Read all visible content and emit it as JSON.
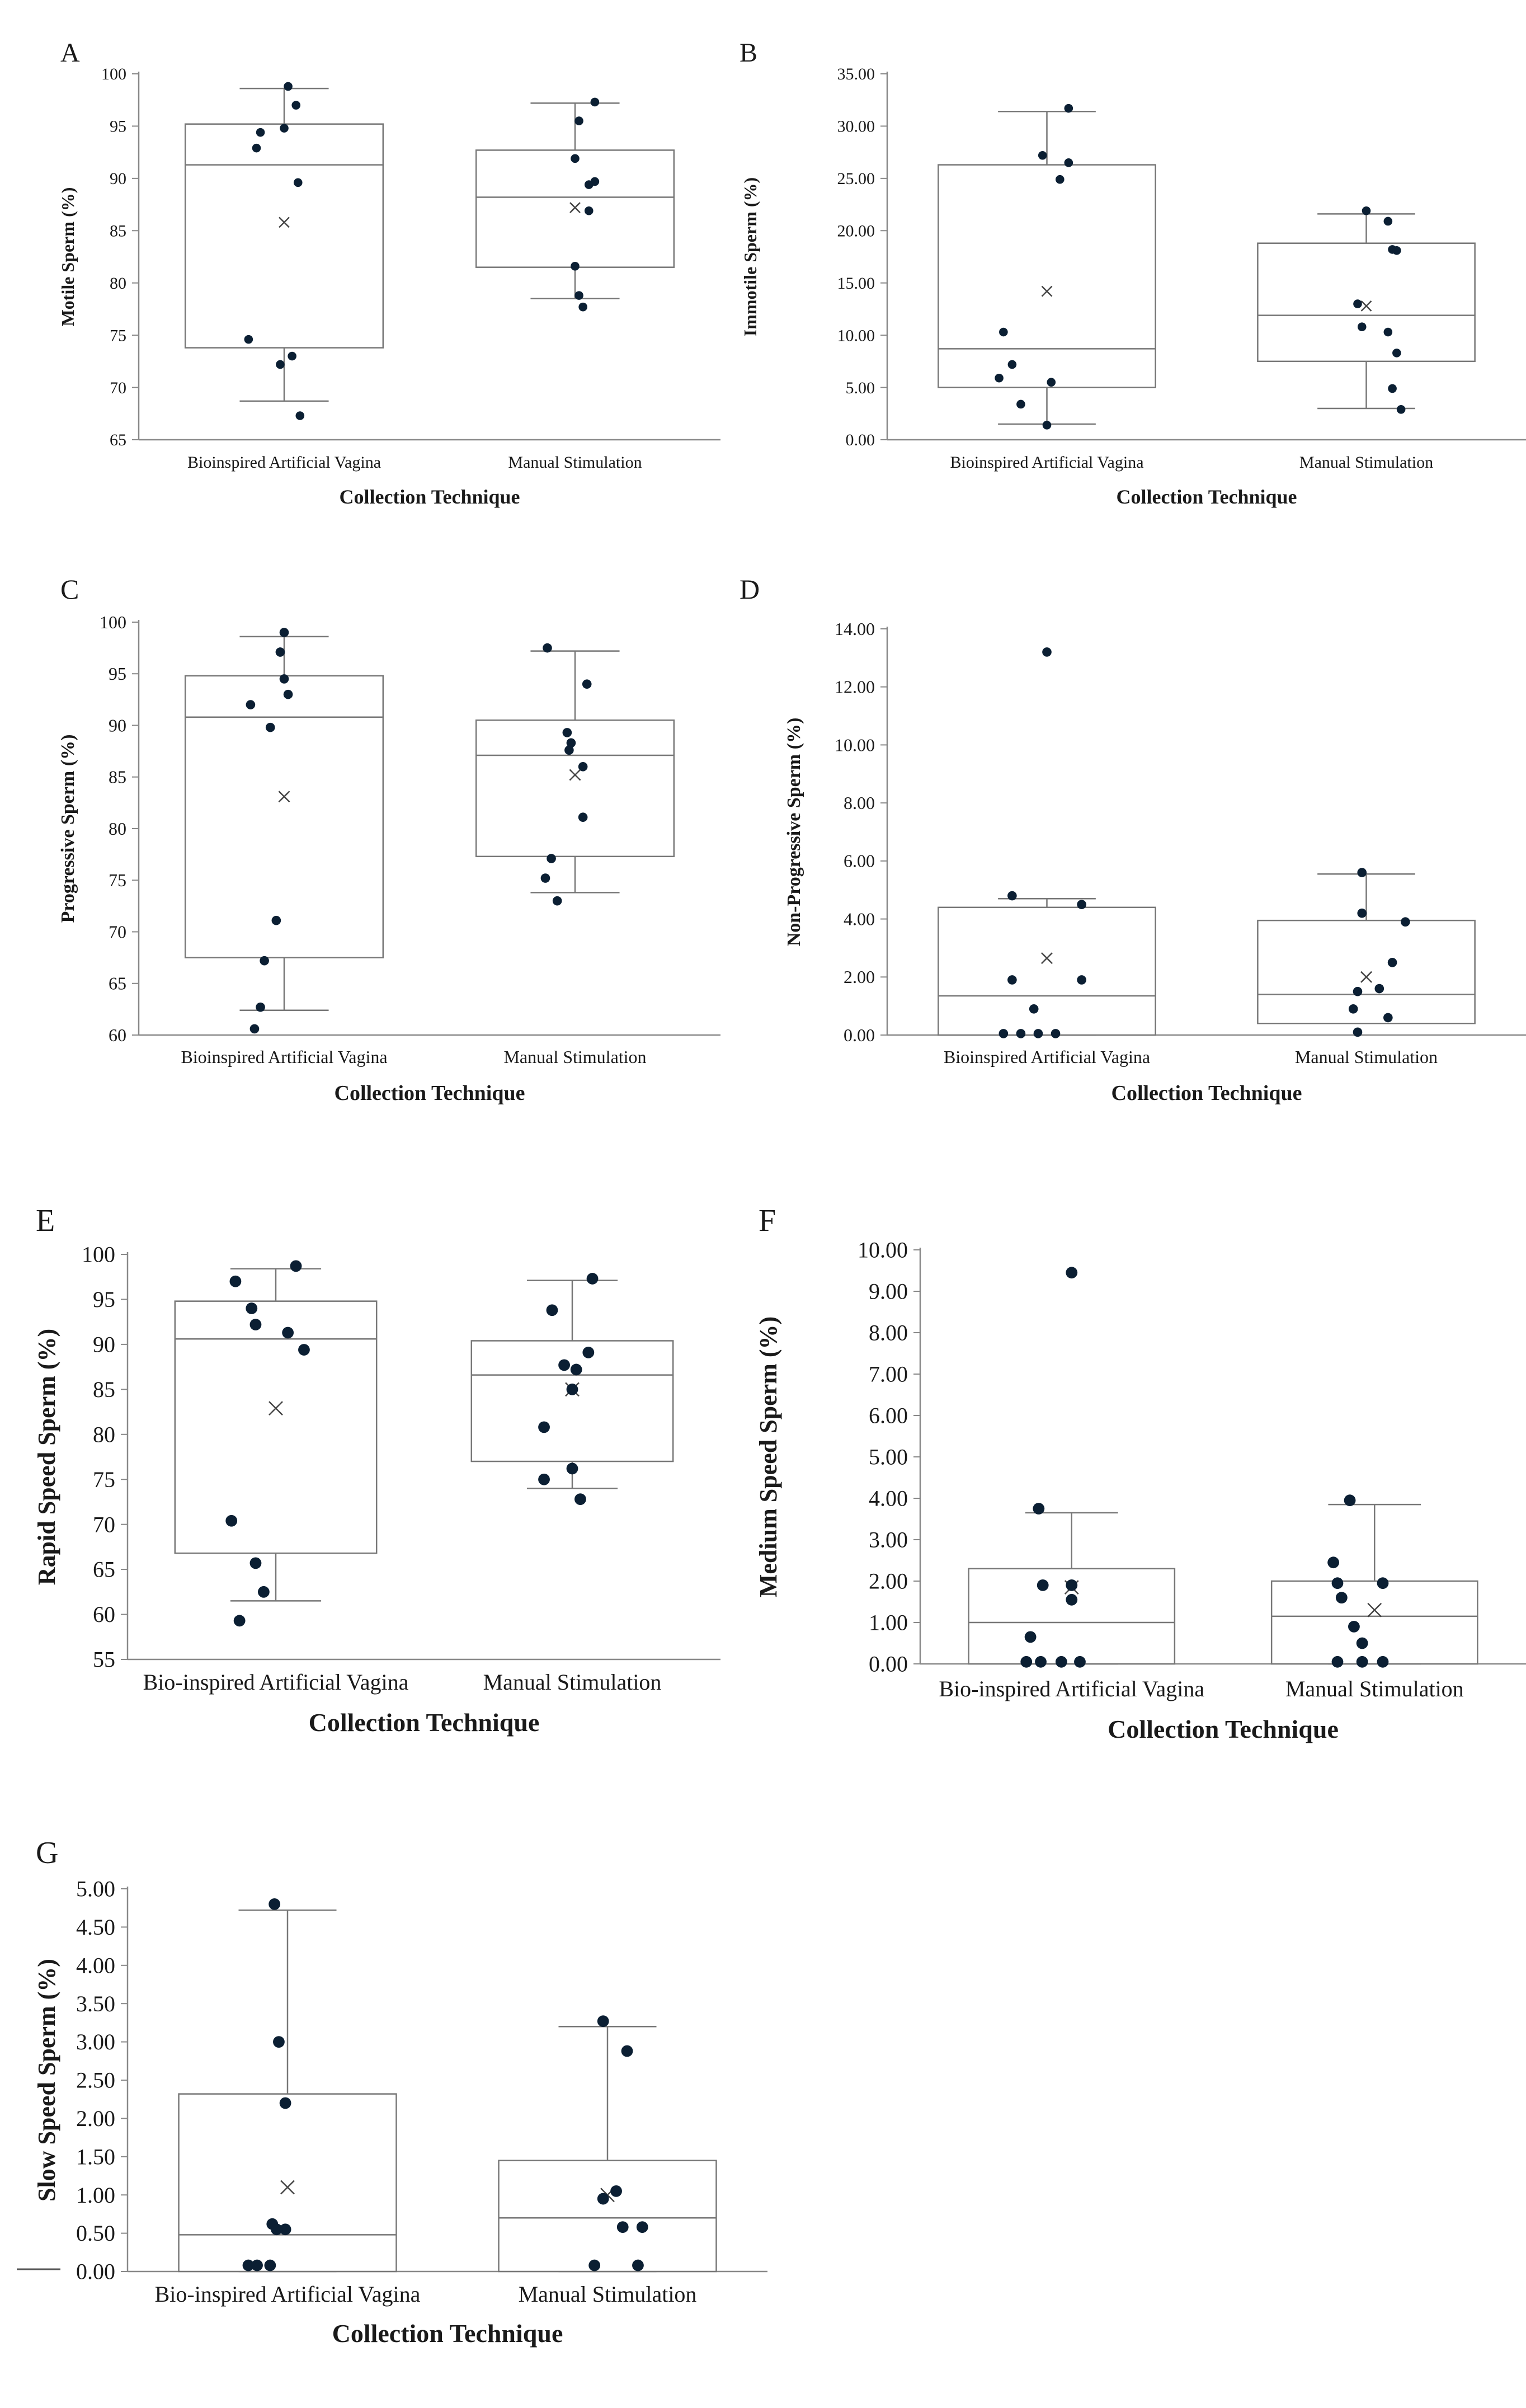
{
  "chart_data": [
    {
      "panel": "A",
      "type": "box",
      "categories": [
        "Bioinspired Artificial Vagina",
        "Manual Stimulation"
      ],
      "xlabel": "Collection Technique",
      "ylabel": "Motile Sperm (%)",
      "ylim": [
        65,
        100
      ],
      "yticks": [
        "65",
        "70",
        "75",
        "80",
        "85",
        "90",
        "95",
        "100"
      ],
      "boxes": [
        {
          "whisker_low": 68.7,
          "q1": 73.8,
          "median": 91.3,
          "q3": 95.2,
          "whisker_high": 98.6,
          "mean": 85.8,
          "points": [
            [
              0.02,
              98.8
            ],
            [
              -0.12,
              94.4
            ],
            [
              -0.14,
              92.9
            ],
            [
              0.06,
              97.0
            ],
            [
              0.0,
              94.8
            ],
            [
              0.07,
              89.6
            ],
            [
              -0.18,
              74.6
            ],
            [
              0.04,
              73.0
            ],
            [
              -0.02,
              72.2
            ],
            [
              0.08,
              67.3
            ]
          ]
        },
        {
          "whisker_low": 78.5,
          "q1": 81.5,
          "median": 88.2,
          "q3": 92.7,
          "whisker_high": 97.2,
          "mean": 87.2,
          "points": [
            [
              0.1,
              97.3
            ],
            [
              0.02,
              95.5
            ],
            [
              0.0,
              91.9
            ],
            [
              0.1,
              89.7
            ],
            [
              0.07,
              89.4
            ],
            [
              0.07,
              86.9
            ],
            [
              0.0,
              81.6
            ],
            [
              0.02,
              78.8
            ],
            [
              0.04,
              77.7
            ]
          ]
        }
      ]
    },
    {
      "panel": "B",
      "type": "box",
      "categories": [
        "Bioinspired Artificial Vagina",
        "Manual Stimulation"
      ],
      "xlabel": "Collection Technique",
      "ylabel": "Immotile Sperm (%)",
      "ylim": [
        0,
        35
      ],
      "yticks": [
        "0.00",
        "5.00",
        "10.00",
        "15.00",
        "20.00",
        "25.00",
        "30.00",
        "35.00"
      ],
      "boxes": [
        {
          "whisker_low": 1.5,
          "q1": 5.0,
          "median": 8.7,
          "q3": 26.3,
          "whisker_high": 31.4,
          "mean": 14.2,
          "points": [
            [
              0.1,
              31.7
            ],
            [
              -0.02,
              27.2
            ],
            [
              0.1,
              26.5
            ],
            [
              0.06,
              24.9
            ],
            [
              -0.2,
              10.3
            ],
            [
              -0.16,
              7.2
            ],
            [
              -0.22,
              5.9
            ],
            [
              0.02,
              5.5
            ],
            [
              -0.12,
              3.4
            ],
            [
              0.0,
              1.4
            ]
          ]
        },
        {
          "whisker_low": 3.0,
          "q1": 7.5,
          "median": 11.9,
          "q3": 18.8,
          "whisker_high": 21.6,
          "mean": 12.8,
          "points": [
            [
              0.0,
              21.9
            ],
            [
              0.1,
              20.9
            ],
            [
              0.12,
              18.2
            ],
            [
              0.14,
              18.1
            ],
            [
              -0.04,
              13.0
            ],
            [
              -0.02,
              10.8
            ],
            [
              0.1,
              10.3
            ],
            [
              0.14,
              8.3
            ],
            [
              0.12,
              4.9
            ],
            [
              0.16,
              2.9
            ]
          ]
        }
      ]
    },
    {
      "panel": "C",
      "type": "box",
      "categories": [
        "Bioinspired Artificial Vagina",
        "Manual Stimulation"
      ],
      "xlabel": "Collection Technique",
      "ylabel": "Progressive Sperm (%)",
      "ylim": [
        60,
        100
      ],
      "yticks": [
        "60",
        "65",
        "70",
        "75",
        "80",
        "85",
        "90",
        "95",
        "100"
      ],
      "boxes": [
        {
          "whisker_low": 62.4,
          "q1": 67.5,
          "median": 90.8,
          "q3": 94.8,
          "whisker_high": 98.6,
          "mean": 83.1,
          "points": [
            [
              0.0,
              99.0
            ],
            [
              -0.02,
              97.1
            ],
            [
              0.0,
              94.5
            ],
            [
              0.02,
              93.0
            ],
            [
              -0.17,
              92.0
            ],
            [
              -0.07,
              89.8
            ],
            [
              -0.04,
              71.1
            ],
            [
              -0.1,
              67.2
            ],
            [
              -0.12,
              62.7
            ],
            [
              -0.15,
              60.6
            ]
          ]
        },
        {
          "whisker_low": 73.8,
          "q1": 77.3,
          "median": 87.1,
          "q3": 90.5,
          "whisker_high": 97.2,
          "mean": 85.2,
          "points": [
            [
              -0.14,
              97.5
            ],
            [
              0.06,
              94.0
            ],
            [
              -0.04,
              89.3
            ],
            [
              -0.02,
              88.3
            ],
            [
              -0.03,
              87.6
            ],
            [
              0.04,
              86.0
            ],
            [
              0.04,
              81.1
            ],
            [
              -0.12,
              77.1
            ],
            [
              -0.15,
              75.2
            ],
            [
              -0.09,
              73.0
            ]
          ]
        }
      ]
    },
    {
      "panel": "D",
      "type": "box",
      "categories": [
        "Bioinspired Artificial Vagina",
        "Manual Stimulation"
      ],
      "xlabel": "Collection Technique",
      "ylabel": "Non-Progressive Sperm (%)",
      "ylim": [
        0,
        14
      ],
      "yticks": [
        "0.00",
        "2.00",
        "4.00",
        "6.00",
        "8.00",
        "10.00",
        "12.00",
        "14.00"
      ],
      "boxes": [
        {
          "whisker_low": 0.0,
          "q1": 0.0,
          "median": 1.35,
          "q3": 4.4,
          "whisker_high": 4.7,
          "mean": 2.65,
          "points": [
            [
              0.0,
              13.2
            ],
            [
              -0.16,
              4.8
            ],
            [
              0.16,
              4.5
            ],
            [
              -0.16,
              1.9
            ],
            [
              0.16,
              1.9
            ],
            [
              -0.06,
              0.9
            ],
            [
              -0.2,
              0.05
            ],
            [
              -0.12,
              0.05
            ],
            [
              -0.04,
              0.05
            ],
            [
              0.04,
              0.05
            ]
          ]
        },
        {
          "whisker_low": 0.4,
          "q1": 0.4,
          "median": 1.4,
          "q3": 3.95,
          "whisker_high": 5.55,
          "mean": 2.0,
          "points": [
            [
              -0.02,
              5.6
            ],
            [
              -0.02,
              4.2
            ],
            [
              0.18,
              3.9
            ],
            [
              0.12,
              2.5
            ],
            [
              0.06,
              1.6
            ],
            [
              -0.04,
              1.5
            ],
            [
              -0.06,
              0.9
            ],
            [
              0.1,
              0.6
            ],
            [
              -0.04,
              0.1
            ]
          ]
        }
      ]
    },
    {
      "panel": "E",
      "type": "box",
      "categories": [
        "Bio-inspired Artificial Vagina",
        "Manual Stimulation"
      ],
      "xlabel": "Collection Technique",
      "ylabel": "Rapid Speed Sperm (%)",
      "ylim": [
        55,
        100
      ],
      "yticks": [
        "55",
        "60",
        "65",
        "70",
        "75",
        "80",
        "85",
        "90",
        "95",
        "100"
      ],
      "boxes": [
        {
          "whisker_low": 61.5,
          "q1": 66.8,
          "median": 90.6,
          "q3": 94.8,
          "whisker_high": 98.4,
          "mean": 82.9,
          "points": [
            [
              0.1,
              98.7
            ],
            [
              -0.2,
              97.0
            ],
            [
              -0.12,
              94.0
            ],
            [
              -0.1,
              92.2
            ],
            [
              0.06,
              91.3
            ],
            [
              0.14,
              89.4
            ],
            [
              -0.22,
              70.4
            ],
            [
              -0.1,
              65.7
            ],
            [
              -0.06,
              62.5
            ],
            [
              -0.18,
              59.3
            ]
          ]
        },
        {
          "whisker_low": 74.0,
          "q1": 77.0,
          "median": 86.6,
          "q3": 90.4,
          "whisker_high": 97.1,
          "mean": 85.0,
          "points": [
            [
              0.1,
              97.3
            ],
            [
              -0.1,
              93.8
            ],
            [
              0.08,
              89.1
            ],
            [
              -0.04,
              87.7
            ],
            [
              0.02,
              87.2
            ],
            [
              0.0,
              85.0
            ],
            [
              -0.14,
              80.8
            ],
            [
              0.0,
              76.2
            ],
            [
              -0.14,
              75.0
            ],
            [
              0.04,
              72.8
            ]
          ]
        }
      ]
    },
    {
      "panel": "F",
      "type": "box",
      "categories": [
        "Bio-inspired Artificial Vagina",
        "Manual Stimulation"
      ],
      "xlabel": "Collection Technique",
      "ylabel": "Medium Speed Sperm (%)",
      "ylim": [
        0,
        10
      ],
      "yticks": [
        "0.00",
        "1.00",
        "2.00",
        "3.00",
        "4.00",
        "5.00",
        "6.00",
        "7.00",
        "8.00",
        "9.00",
        "10.00"
      ],
      "boxes": [
        {
          "whisker_low": 0.0,
          "q1": 0.0,
          "median": 1.0,
          "q3": 2.3,
          "whisker_high": 3.65,
          "mean": 1.85,
          "points": [
            [
              0.0,
              9.45
            ],
            [
              -0.16,
              3.75
            ],
            [
              -0.14,
              1.9
            ],
            [
              0.0,
              1.9
            ],
            [
              0.0,
              1.55
            ],
            [
              -0.2,
              0.65
            ],
            [
              -0.22,
              0.05
            ],
            [
              -0.15,
              0.05
            ],
            [
              -0.05,
              0.05
            ],
            [
              0.04,
              0.05
            ]
          ]
        },
        {
          "whisker_low": 0.0,
          "q1": 0.0,
          "median": 1.15,
          "q3": 2.0,
          "whisker_high": 3.85,
          "mean": 1.3,
          "points": [
            [
              -0.12,
              3.95
            ],
            [
              -0.2,
              2.45
            ],
            [
              -0.18,
              1.95
            ],
            [
              0.04,
              1.95
            ],
            [
              -0.16,
              1.6
            ],
            [
              -0.1,
              0.9
            ],
            [
              -0.06,
              0.5
            ],
            [
              -0.18,
              0.05
            ],
            [
              -0.06,
              0.05
            ],
            [
              0.04,
              0.05
            ]
          ]
        }
      ]
    },
    {
      "panel": "G",
      "type": "box",
      "categories": [
        "Bio-inspired Artificial Vagina",
        "Manual Stimulation"
      ],
      "xlabel": "Collection Technique",
      "ylabel": "Slow Speed Sperm (%)",
      "ylim": [
        0,
        5
      ],
      "yticks": [
        "0.00",
        "0.50",
        "1.00",
        "1.50",
        "2.00",
        "2.50",
        "3.00",
        "3.50",
        "4.00",
        "4.50",
        "5.00"
      ],
      "boxes": [
        {
          "whisker_low": 0.0,
          "q1": 0.0,
          "median": 0.48,
          "q3": 2.32,
          "whisker_high": 4.72,
          "mean": 1.1,
          "points": [
            [
              -0.06,
              4.8
            ],
            [
              -0.04,
              3.0
            ],
            [
              -0.01,
              2.2
            ],
            [
              -0.07,
              0.62
            ],
            [
              -0.01,
              0.55
            ],
            [
              -0.05,
              0.55
            ],
            [
              -0.18,
              0.08
            ],
            [
              -0.14,
              0.08
            ],
            [
              -0.08,
              0.08
            ]
          ]
        },
        {
          "whisker_low": 0.0,
          "q1": 0.0,
          "median": 0.7,
          "q3": 1.45,
          "whisker_high": 3.2,
          "mean": 1.0,
          "points": [
            [
              -0.02,
              3.27
            ],
            [
              0.09,
              2.88
            ],
            [
              0.04,
              1.05
            ],
            [
              -0.02,
              0.95
            ],
            [
              0.07,
              0.58
            ],
            [
              0.16,
              0.58
            ],
            [
              -0.06,
              0.08
            ],
            [
              0.14,
              0.08
            ]
          ]
        }
      ]
    }
  ]
}
